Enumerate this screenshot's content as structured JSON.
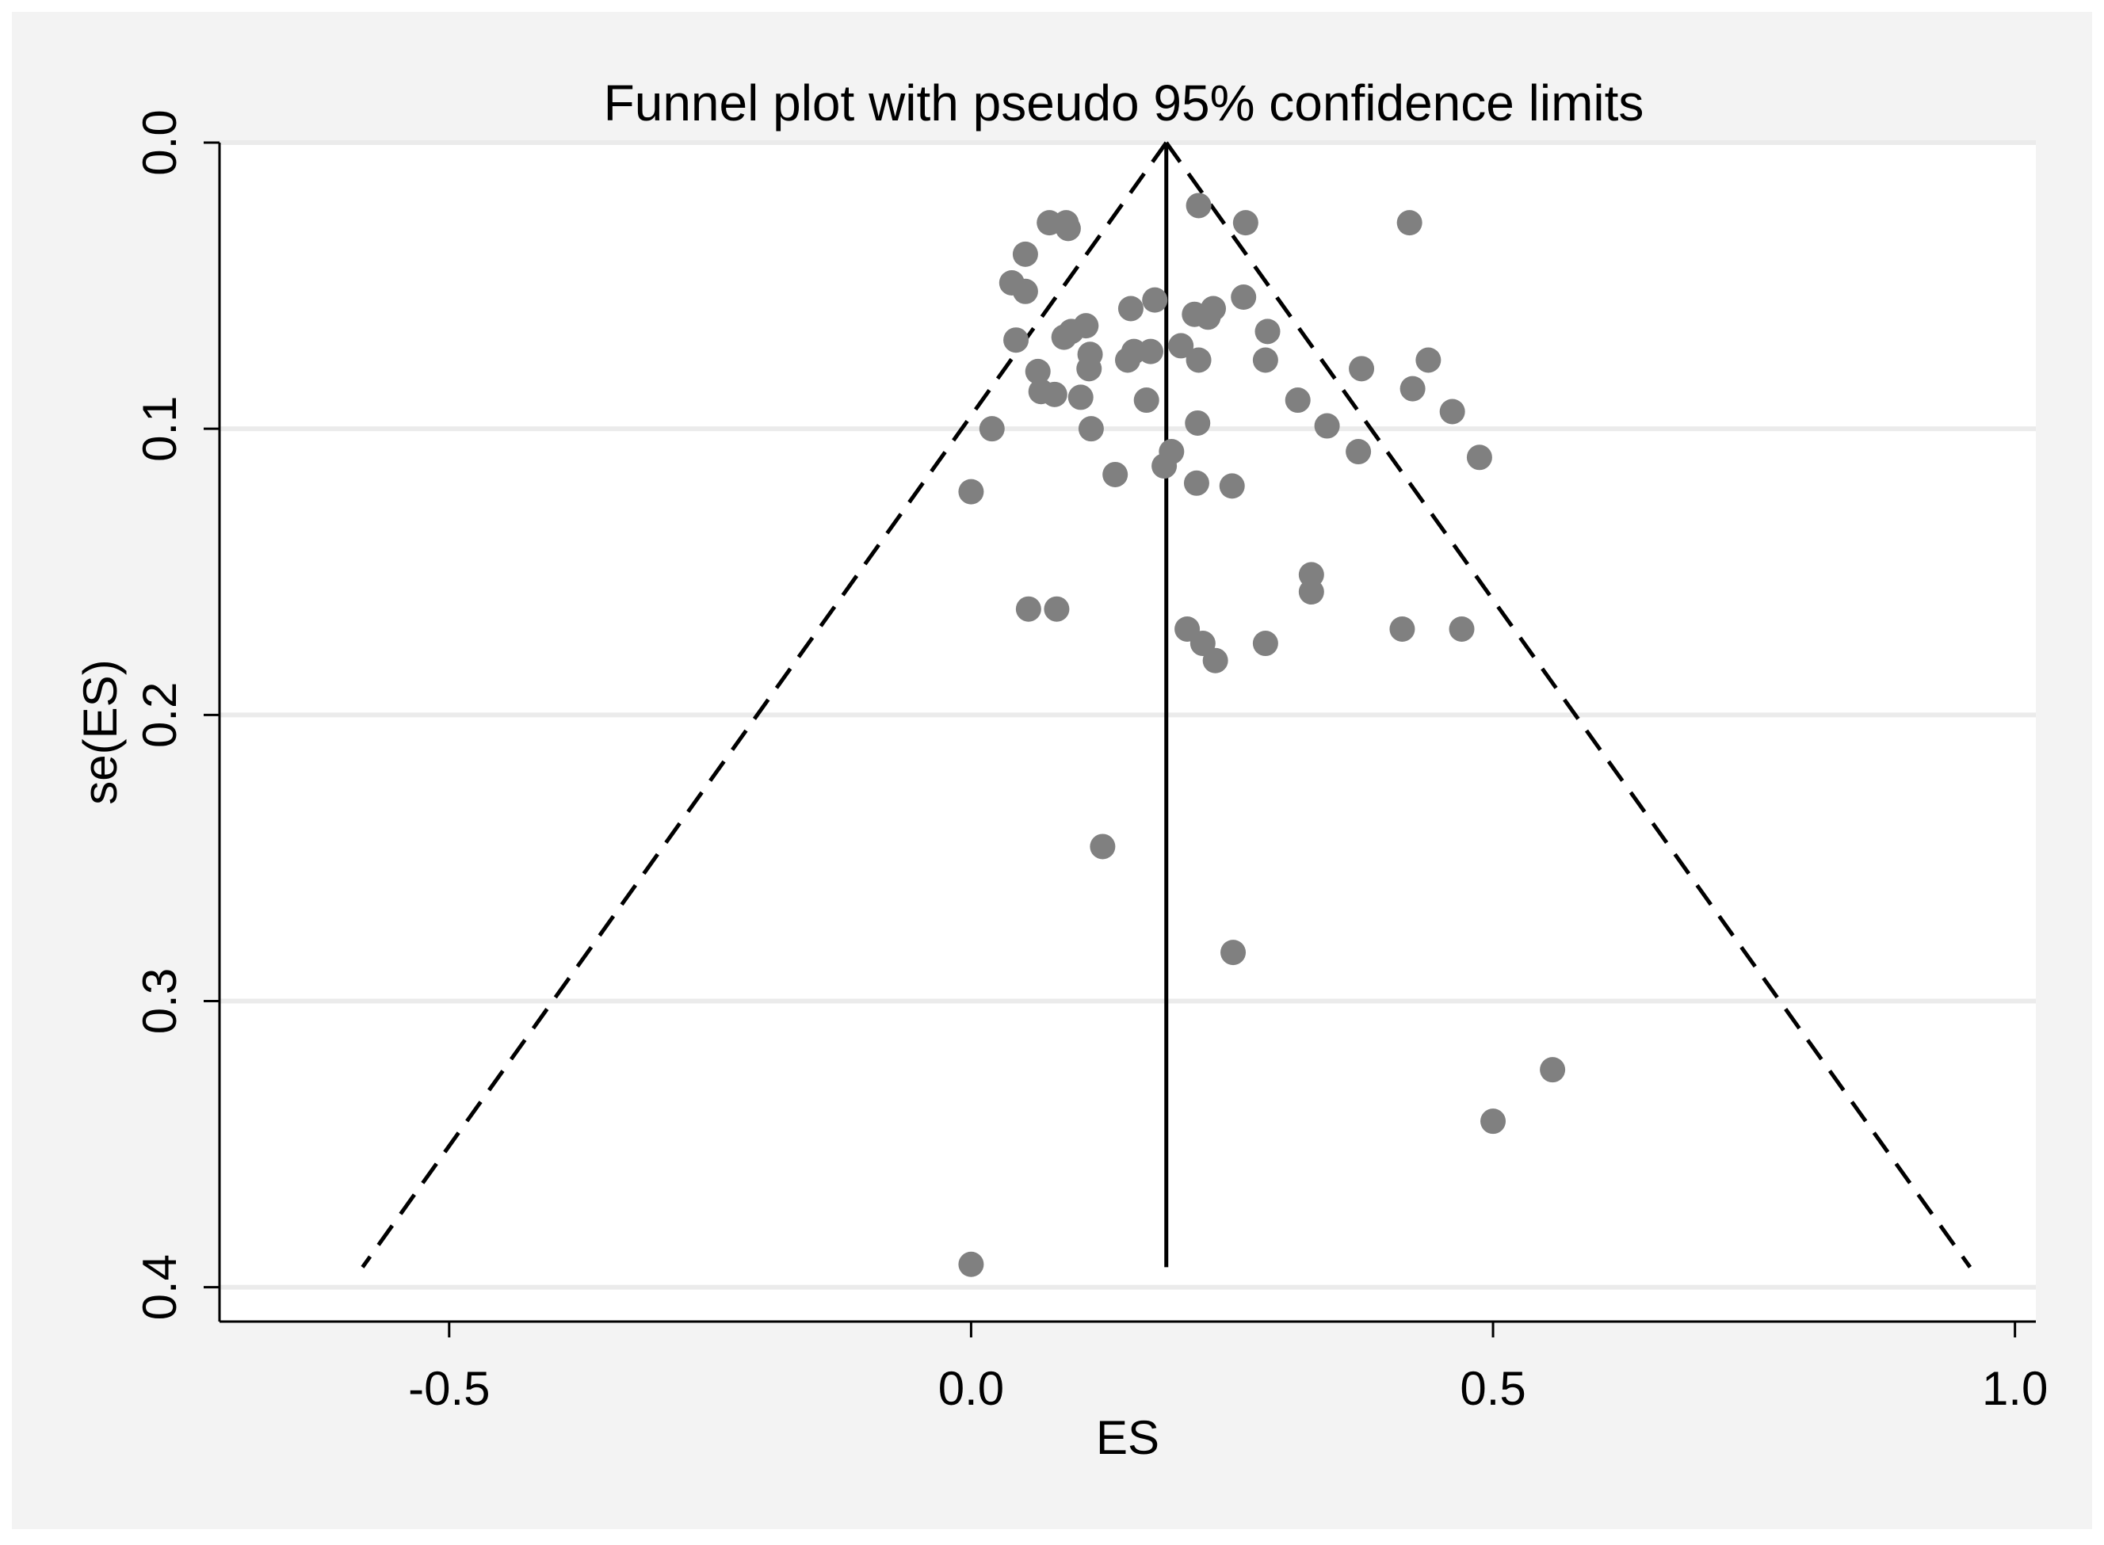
{
  "chart_data": {
    "type": "scatter",
    "title": "Funnel plot with pseudo 95% confidence limits",
    "xlabel": "ES",
    "ylabel": "se(ES)",
    "xlim": [
      -0.72,
      1.02
    ],
    "ylim": [
      0.0,
      0.412
    ],
    "y_axis_inverted": true,
    "xticks": [
      -0.5,
      0.0,
      0.5,
      1.0
    ],
    "xtick_labels": [
      "-0.5",
      "0.0",
      "0.5",
      "1.0"
    ],
    "yticks": [
      0.0,
      0.1,
      0.2,
      0.3,
      0.4
    ],
    "ytick_labels": [
      "0.0",
      "0.1",
      "0.2",
      "0.3",
      "0.4"
    ],
    "grid": true,
    "pooled_estimate": 0.187,
    "pseudo_ci_limits": {
      "apex": [
        0.187,
        0.0
      ],
      "left_bottom": [
        -0.583,
        0.393
      ],
      "right_bottom": [
        0.957,
        0.393
      ]
    },
    "series": [
      {
        "name": "studies",
        "points": [
          [
            0.075,
            0.028
          ],
          [
            0.091,
            0.028
          ],
          [
            0.093,
            0.03
          ],
          [
            0.263,
            0.028
          ],
          [
            0.42,
            0.028
          ],
          [
            0.218,
            0.022
          ],
          [
            0.052,
            0.039
          ],
          [
            0.039,
            0.049
          ],
          [
            0.052,
            0.052
          ],
          [
            0.176,
            0.055
          ],
          [
            0.261,
            0.054
          ],
          [
            0.153,
            0.058
          ],
          [
            0.232,
            0.058
          ],
          [
            0.227,
            0.061
          ],
          [
            0.214,
            0.06
          ],
          [
            0.043,
            0.069
          ],
          [
            0.089,
            0.068
          ],
          [
            0.096,
            0.066
          ],
          [
            0.11,
            0.064
          ],
          [
            0.284,
            0.066
          ],
          [
            0.114,
            0.074
          ],
          [
            0.156,
            0.073
          ],
          [
            0.172,
            0.073
          ],
          [
            0.201,
            0.071
          ],
          [
            0.15,
            0.076
          ],
          [
            0.218,
            0.076
          ],
          [
            0.282,
            0.076
          ],
          [
            0.438,
            0.076
          ],
          [
            0.113,
            0.079
          ],
          [
            0.064,
            0.08
          ],
          [
            0.374,
            0.079
          ],
          [
            0.067,
            0.087
          ],
          [
            0.08,
            0.088
          ],
          [
            0.105,
            0.089
          ],
          [
            0.168,
            0.09
          ],
          [
            0.313,
            0.09
          ],
          [
            0.423,
            0.086
          ],
          [
            0.461,
            0.094
          ],
          [
            0.115,
            0.1
          ],
          [
            0.02,
            0.1
          ],
          [
            0.217,
            0.098
          ],
          [
            0.341,
            0.099
          ],
          [
            0.192,
            0.108
          ],
          [
            0.185,
            0.113
          ],
          [
            0.138,
            0.116
          ],
          [
            0.216,
            0.119
          ],
          [
            0.25,
            0.12
          ],
          [
            0.371,
            0.108
          ],
          [
            0.487,
            0.11
          ],
          [
            0.0,
            0.122
          ],
          [
            0.326,
            0.151
          ],
          [
            0.326,
            0.157
          ],
          [
            0.055,
            0.163
          ],
          [
            0.082,
            0.163
          ],
          [
            0.207,
            0.17
          ],
          [
            0.222,
            0.175
          ],
          [
            0.234,
            0.181
          ],
          [
            0.282,
            0.175
          ],
          [
            0.413,
            0.17
          ],
          [
            0.47,
            0.17
          ],
          [
            0.126,
            0.246
          ],
          [
            0.251,
            0.283
          ],
          [
            0.557,
            0.324
          ],
          [
            0.5,
            0.342
          ],
          [
            0.0,
            0.392
          ]
        ]
      }
    ]
  }
}
